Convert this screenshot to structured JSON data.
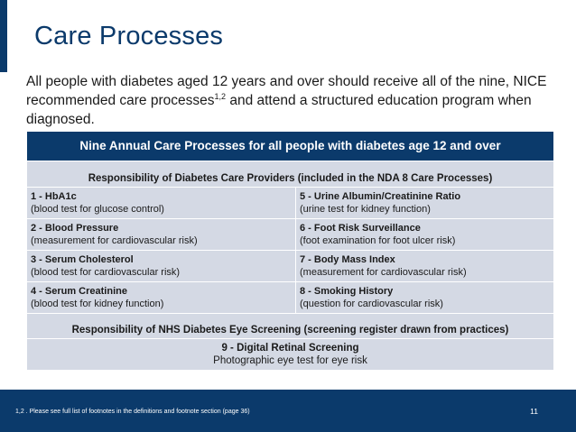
{
  "slide": {
    "title": "Care Processes",
    "intro_before": "All people with diabetes aged 12 years and over should receive all of the nine, NICE recommended care processes",
    "intro_sup": "1,2",
    "intro_after": " and attend a structured education program when diagnosed.",
    "colors": {
      "brand": "#0b3a6b",
      "cell_bg": "#d4d9e4"
    }
  },
  "table": {
    "header": "Nine Annual Care Processes for all people with diabetes age 12 and over",
    "section1": "Responsibility of Diabetes Care Providers (included in the NDA 8 Care Processes)",
    "rows": [
      {
        "left_title": "1 - HbA1c",
        "left_desc": "(blood test for glucose control)",
        "right_title": "5 - Urine Albumin/Creatinine Ratio",
        "right_desc": "(urine test for kidney function)"
      },
      {
        "left_title": "2 - Blood Pressure",
        "left_desc": "(measurement for cardiovascular risk)",
        "right_title": "6 - Foot Risk Surveillance",
        "right_desc": "(foot examination for foot ulcer risk)"
      },
      {
        "left_title": "3 - Serum Cholesterol",
        "left_desc": "(blood test for cardiovascular risk)",
        "right_title": "7 - Body Mass Index",
        "right_desc": "(measurement for cardiovascular risk)"
      },
      {
        "left_title": "4 - Serum Creatinine",
        "left_desc": "(blood test for kidney function)",
        "right_title": "8 - Smoking History",
        "right_desc": "(question for cardiovascular risk)"
      }
    ],
    "section2": "Responsibility of NHS Diabetes Eye Screening (screening register drawn from practices)",
    "eye_title": "9 - Digital Retinal Screening",
    "eye_desc": "Photographic eye test for eye risk"
  },
  "footer": {
    "footnote": "1,2 . Please see full list of footnotes in the definitions and footnote section  (page 36)",
    "page_number": "11"
  }
}
